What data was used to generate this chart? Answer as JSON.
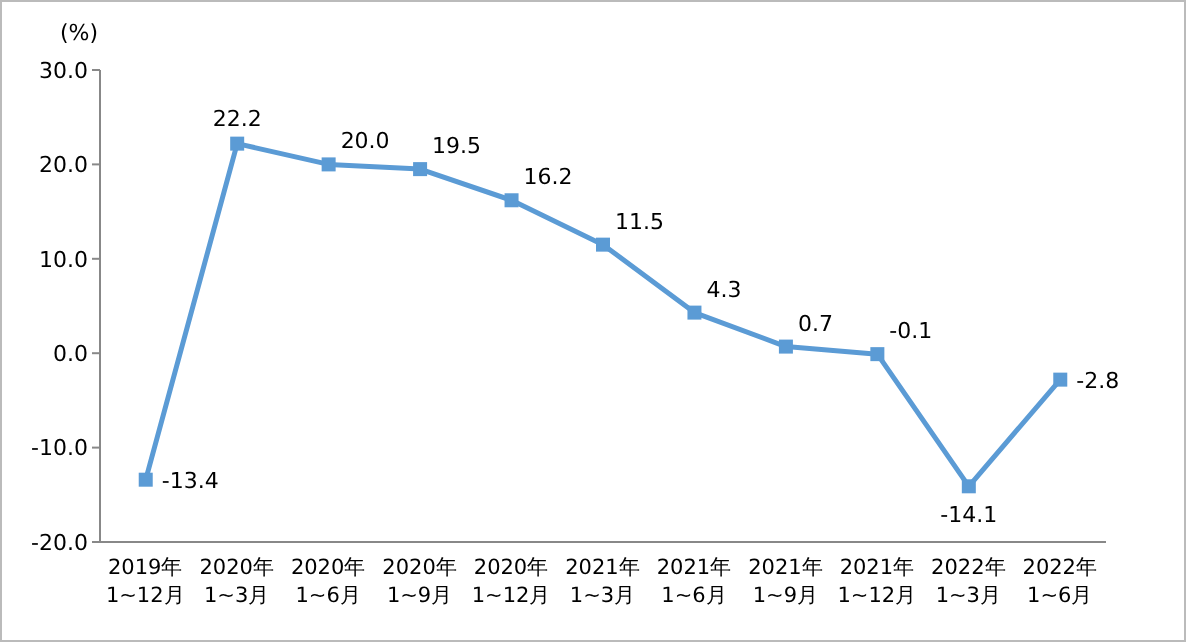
{
  "chart_data": {
    "type": "line",
    "ylabel": "(%)",
    "categories": [
      "2019年\n1~12月",
      "2020年\n1~3月",
      "2020年\n1~6月",
      "2020年\n1~9月",
      "2020年\n1~12月",
      "2021年\n1~3月",
      "2021年\n1~6月",
      "2021年\n1~9月",
      "2021年\n1~12月",
      "2022年\n1~3月",
      "2022年\n1~6月"
    ],
    "series": [
      {
        "color": "#5b9bd5",
        "values": [
          -13.4,
          22.2,
          20.0,
          19.5,
          16.2,
          11.5,
          4.3,
          0.7,
          -0.1,
          -14.1,
          -2.8
        ],
        "value_labels": [
          "-13.4",
          "22.2",
          "20.0",
          "19.5",
          "16.2",
          "11.5",
          "4.3",
          "0.7",
          "-0.1",
          "-14.1",
          "-2.8"
        ]
      }
    ],
    "ylim": [
      -20,
      30
    ],
    "yticks": [
      {
        "value": -20,
        "label": "-20.0"
      },
      {
        "value": -10,
        "label": "-10.0"
      },
      {
        "value": 0,
        "label": "0.0"
      },
      {
        "value": 10,
        "label": "10.0"
      },
      {
        "value": 20,
        "label": "20.0"
      },
      {
        "value": 30,
        "label": "30.0"
      }
    ],
    "marker": "square",
    "line_style": "solid",
    "grid": false
  }
}
